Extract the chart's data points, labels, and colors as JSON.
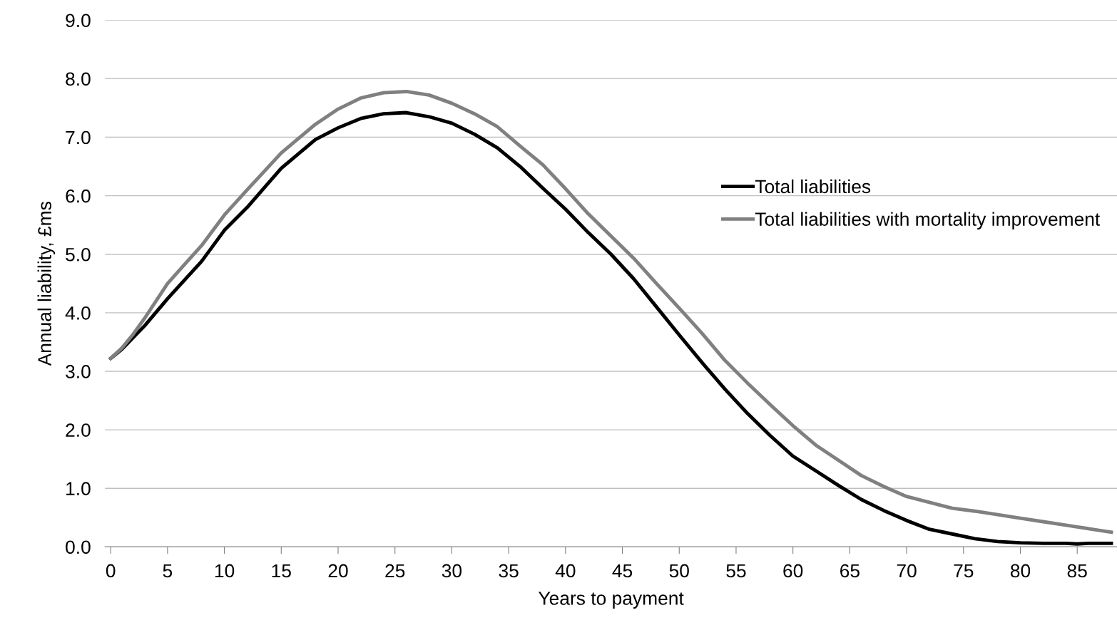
{
  "chart_data": {
    "type": "line",
    "xlabel": "Years to payment",
    "ylabel": "Annual liability, £ms",
    "x": [
      0,
      1,
      2,
      3,
      5,
      8,
      10,
      12,
      15,
      18,
      20,
      22,
      24,
      26,
      28,
      30,
      32,
      34,
      36,
      38,
      40,
      42,
      44,
      46,
      48,
      50,
      52,
      54,
      56,
      58,
      60,
      62,
      64,
      66,
      68,
      70,
      72,
      74,
      76,
      78,
      80,
      82,
      84,
      85,
      86,
      88
    ],
    "series": [
      {
        "name": "Total liabilities",
        "color": "#000000",
        "values": [
          3.22,
          3.38,
          3.58,
          3.78,
          4.24,
          4.88,
          5.41,
          5.8,
          6.47,
          6.96,
          7.16,
          7.32,
          7.4,
          7.42,
          7.35,
          7.24,
          7.05,
          6.82,
          6.5,
          6.13,
          5.77,
          5.37,
          5.0,
          4.58,
          4.1,
          3.62,
          3.15,
          2.7,
          2.28,
          1.9,
          1.55,
          1.3,
          1.05,
          0.81,
          0.62,
          0.45,
          0.3,
          0.22,
          0.14,
          0.09,
          0.07,
          0.06,
          0.06,
          0.05,
          0.06,
          0.06
        ]
      },
      {
        "name": "Total liabilities with mortality improvement",
        "color": "#808080",
        "values": [
          3.22,
          3.4,
          3.64,
          3.91,
          4.5,
          5.15,
          5.67,
          6.1,
          6.73,
          7.22,
          7.48,
          7.67,
          7.76,
          7.78,
          7.72,
          7.58,
          7.4,
          7.18,
          6.85,
          6.53,
          6.12,
          5.69,
          5.31,
          4.93,
          4.5,
          4.08,
          3.65,
          3.19,
          2.8,
          2.43,
          2.07,
          1.74,
          1.48,
          1.22,
          1.03,
          0.86,
          0.76,
          0.66,
          0.61,
          0.55,
          0.49,
          0.43,
          0.37,
          0.34,
          0.31,
          0.25
        ]
      }
    ],
    "xlim": [
      -0.5,
      88.5
    ],
    "xticks": [
      0,
      5,
      10,
      15,
      20,
      25,
      30,
      35,
      40,
      45,
      50,
      55,
      60,
      65,
      70,
      75,
      80,
      85
    ],
    "ylim": [
      0,
      9
    ],
    "yticks": [
      {
        "value": 0,
        "label": "0.0"
      },
      {
        "value": 1,
        "label": "1.0"
      },
      {
        "value": 2,
        "label": "2.0"
      },
      {
        "value": 3,
        "label": "3.0"
      },
      {
        "value": 4,
        "label": "4.0"
      },
      {
        "value": 5,
        "label": "5.0"
      },
      {
        "value": 6,
        "label": "6.0"
      },
      {
        "value": 7,
        "label": "7.0"
      },
      {
        "value": 8,
        "label": "8.0"
      },
      {
        "value": 9,
        "label": "9.0"
      }
    ],
    "grid": "y",
    "legend": "center right",
    "line_style": "solid",
    "marker": "none"
  }
}
